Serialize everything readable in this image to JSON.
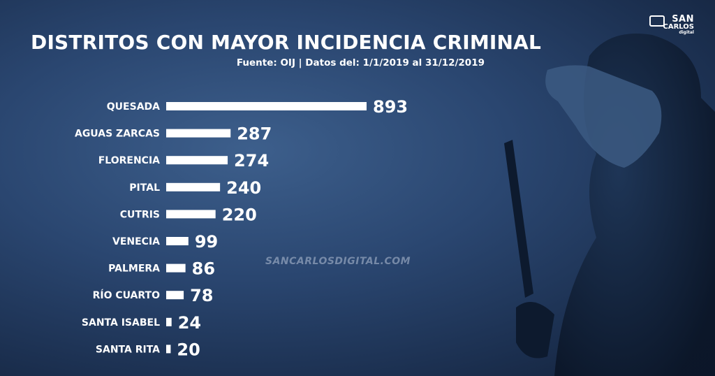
{
  "title": "DISTRITOS CON MAYOR INCIDENCIA CRIMINAL",
  "subtitle": "Fuente: OIJ | Datos del: 1/1/2019 al 31/12/2019",
  "logo": {
    "line1": "SAN",
    "line2": "CARLOS",
    "line3": "digital"
  },
  "watermark": "SANCARLOSDIGITAL.COM",
  "colors": {
    "bar": "#ffffff",
    "text": "#ffffff"
  },
  "chart_data": {
    "type": "bar",
    "orientation": "horizontal",
    "categories": [
      "QUESADA",
      "AGUAS ZARCAS",
      "FLORENCIA",
      "PITAL",
      "CUTRIS",
      "VENECIA",
      "PALMERA",
      "RÍO CUARTO",
      "SANTA ISABEL",
      "SANTA RITA"
    ],
    "values": [
      893,
      287,
      274,
      240,
      220,
      99,
      86,
      78,
      24,
      20
    ],
    "title": "DISTRITOS CON MAYOR INCIDENCIA CRIMINAL",
    "xlabel": "",
    "ylabel": "",
    "grid": false,
    "legend": "none"
  }
}
